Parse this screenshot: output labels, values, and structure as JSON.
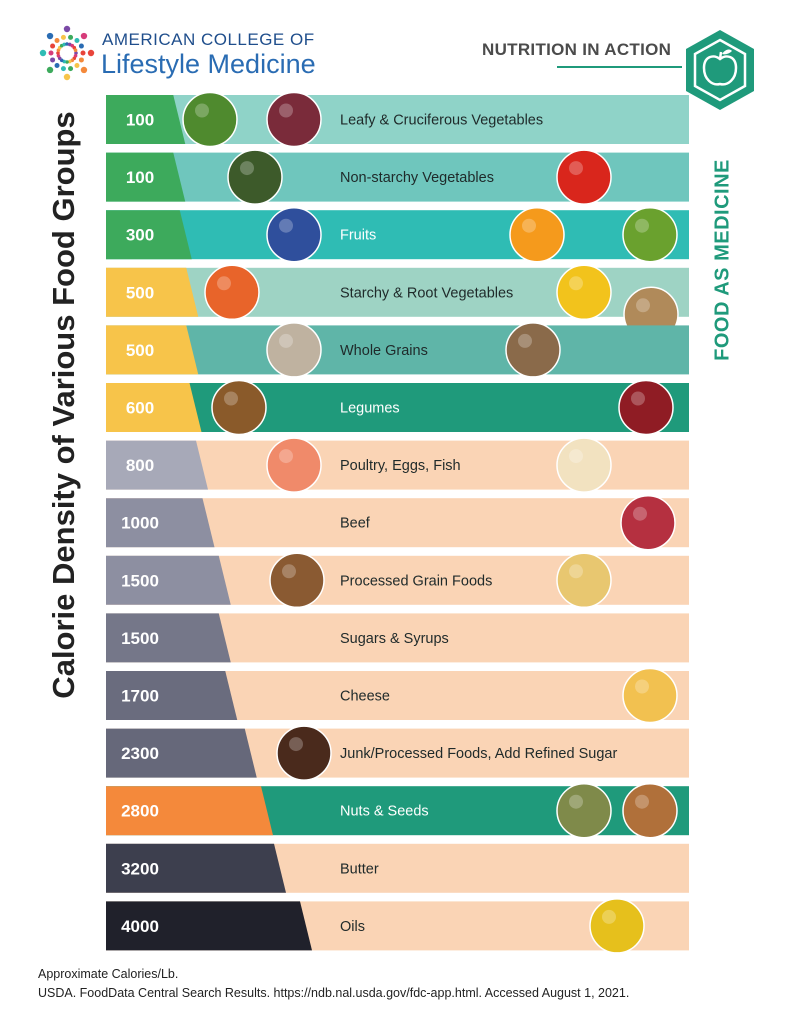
{
  "header": {
    "logo_line1": "AMERICAN COLLEGE OF",
    "logo_line2": "Lifestyle Medicine",
    "tag": "NUTRITION IN ACTION"
  },
  "side_title": "Calorie Density of Various Food Groups",
  "side_right_title": "FOOD AS MEDICINE",
  "footer": {
    "line1": "Approximate Calories/Lb.",
    "line2": "USDA. FoodData Central Search Results. https://ndb.nal.usda.gov/fdc-app.html. Accessed August 1, 2021."
  },
  "colors": {
    "green": "#3daa5c",
    "yellow": "#f7c44a",
    "orange": "#f4893b",
    "teal_dark": "#1f9a7b",
    "peach": "#fad4b5"
  },
  "chart_data": {
    "type": "bar",
    "title": "Calorie Density of Various Food Groups",
    "ylabel": "Approximate Calories/Lb.",
    "categories": [
      "Leafy & Cruciferous Vegetables",
      "Non-starchy Vegetables",
      "Fruits",
      "Starchy & Root Vegetables",
      "Whole Grains",
      "Legumes",
      "Poultry, Eggs, Fish",
      "Beef",
      "Processed Grain Foods",
      "Sugars & Syrups",
      "Cheese",
      "Junk/Processed Foods, Add Refined Sugar",
      "Nuts & Seeds",
      "Butter",
      "Oils"
    ],
    "values": [
      100,
      100,
      300,
      500,
      500,
      600,
      800,
      1000,
      1500,
      1500,
      1700,
      2300,
      2800,
      3200,
      4000
    ],
    "badge_colors": [
      "#3daa5c",
      "#3daa5c",
      "#3daa5c",
      "#f7c44a",
      "#f7c44a",
      "#f7c44a",
      "#a7a9b8",
      "#8d8fa1",
      "#8d8fa1",
      "#757789",
      "#6a6c7e",
      "#66687a",
      "#f4893b",
      "#3d3f4e",
      "#20212b"
    ],
    "band_colors": [
      "#8fd3c8",
      "#6fc6bd",
      "#2fbcb4",
      "#9ed3c4",
      "#5fb5a8",
      "#1f9a7b",
      "#fad4b5",
      "#fad4b5",
      "#fad4b5",
      "#fad4b5",
      "#fad4b5",
      "#fad4b5",
      "#1f9a7b",
      "#fad4b5",
      "#fad4b5"
    ],
    "foods": [
      [
        "broccoli",
        "salad"
      ],
      [
        "zucchini",
        "tomato"
      ],
      [
        "blueberries",
        "orange slice",
        "kiwi"
      ],
      [
        "carrots",
        "corn",
        "potatoes"
      ],
      [
        "wild rice",
        "quinoa"
      ],
      [
        "lentils",
        "kidney beans"
      ],
      [
        "salmon",
        "egg breakfast"
      ],
      [
        "steak"
      ],
      [
        "cereal",
        "pasta"
      ],
      [],
      [
        "swiss cheese"
      ],
      [
        "cola"
      ],
      [
        "pumpkin seeds",
        "almonds"
      ],
      [],
      [
        "olive oil"
      ]
    ]
  }
}
